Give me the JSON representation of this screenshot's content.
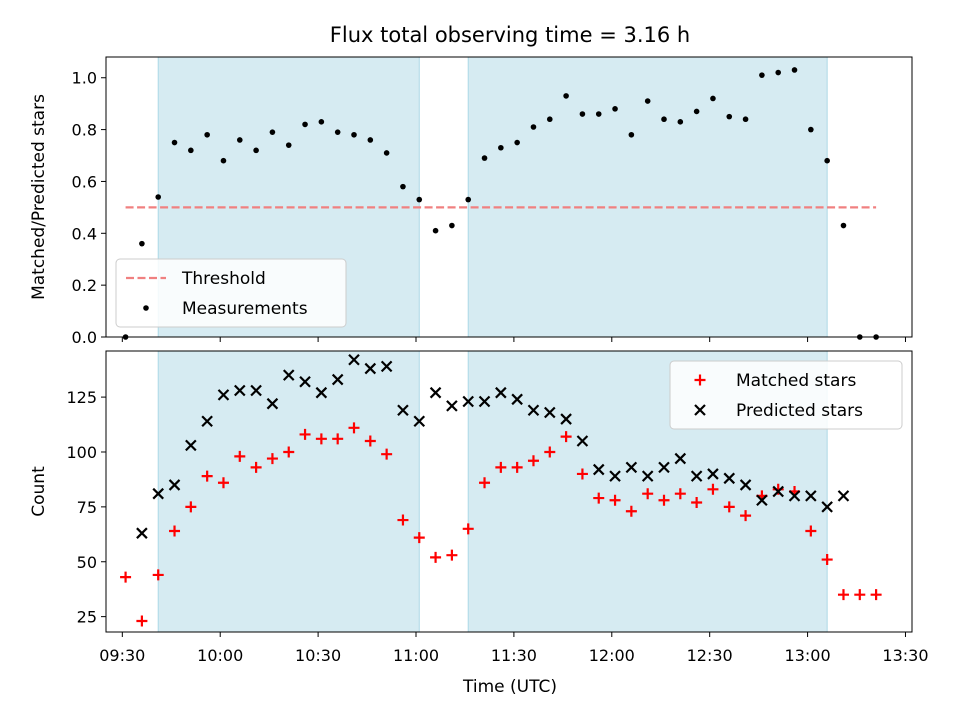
{
  "figure": {
    "title": "Flux total observing time = 3.16 h",
    "xlabel": "Time (UTC)"
  },
  "chart_data": [
    {
      "type": "scatter",
      "panel": "top",
      "ylabel": "Matched/Predicted stars",
      "xlim": [
        "09:25",
        "13:32"
      ],
      "ylim": [
        0,
        1.08
      ],
      "yticks": [
        0.0,
        0.2,
        0.4,
        0.6,
        0.8,
        1.0
      ],
      "shaded_intervals": [
        [
          "09:41",
          "11:01"
        ],
        [
          "11:16",
          "13:06"
        ]
      ],
      "threshold": {
        "label": "Threshold",
        "value": 0.5,
        "x_start": "09:31",
        "x_end": "13:21",
        "color": "#f08080"
      },
      "legend": {
        "position": "lower-left",
        "entries": [
          "Threshold",
          "Measurements"
        ]
      },
      "series": [
        {
          "name": "Measurements",
          "marker": "dot",
          "color": "#000000",
          "x": [
            "09:31",
            "09:36",
            "09:41",
            "09:46",
            "09:51",
            "09:56",
            "10:01",
            "10:06",
            "10:11",
            "10:16",
            "10:21",
            "10:26",
            "10:31",
            "10:36",
            "10:41",
            "10:46",
            "10:51",
            "10:56",
            "11:01",
            "11:06",
            "11:11",
            "11:16",
            "11:21",
            "11:26",
            "11:31",
            "11:36",
            "11:41",
            "11:46",
            "11:51",
            "11:56",
            "12:01",
            "12:06",
            "12:11",
            "12:16",
            "12:21",
            "12:26",
            "12:31",
            "12:36",
            "12:41",
            "12:46",
            "12:51",
            "12:56",
            "13:01",
            "13:06",
            "13:11",
            "13:16",
            "13:21"
          ],
          "y": [
            0.0,
            0.36,
            0.54,
            0.75,
            0.72,
            0.78,
            0.68,
            0.76,
            0.72,
            0.79,
            0.74,
            0.82,
            0.83,
            0.79,
            0.78,
            0.76,
            0.71,
            0.58,
            0.53,
            0.41,
            0.43,
            0.53,
            0.69,
            0.73,
            0.75,
            0.81,
            0.84,
            0.93,
            0.86,
            0.86,
            0.88,
            0.78,
            0.91,
            0.84,
            0.83,
            0.87,
            0.92,
            0.85,
            0.84,
            1.01,
            1.02,
            1.03,
            0.8,
            0.68,
            0.43,
            0.0,
            0.0
          ]
        }
      ]
    },
    {
      "type": "scatter",
      "panel": "bottom",
      "ylabel": "Count",
      "xlim": [
        "09:25",
        "13:32"
      ],
      "ylim": [
        18,
        146
      ],
      "yticks": [
        25,
        50,
        75,
        100,
        125
      ],
      "xticks": [
        "09:30",
        "10:00",
        "10:30",
        "11:00",
        "11:30",
        "12:00",
        "12:30",
        "13:00",
        "13:30"
      ],
      "shaded_intervals": [
        [
          "09:41",
          "11:01"
        ],
        [
          "11:16",
          "13:06"
        ]
      ],
      "legend": {
        "position": "top-right",
        "entries": [
          "Matched stars",
          "Predicted stars"
        ]
      },
      "series": [
        {
          "name": "Matched stars",
          "marker": "plus",
          "color": "#ff0000",
          "x": [
            "09:31",
            "09:36",
            "09:41",
            "09:46",
            "09:51",
            "09:56",
            "10:01",
            "10:06",
            "10:11",
            "10:16",
            "10:21",
            "10:26",
            "10:31",
            "10:36",
            "10:41",
            "10:46",
            "10:51",
            "10:56",
            "11:01",
            "11:06",
            "11:11",
            "11:16",
            "11:21",
            "11:26",
            "11:31",
            "11:36",
            "11:41",
            "11:46",
            "11:51",
            "11:56",
            "12:01",
            "12:06",
            "12:11",
            "12:16",
            "12:21",
            "12:26",
            "12:31",
            "12:36",
            "12:41",
            "12:46",
            "12:51",
            "12:56",
            "13:01",
            "13:06",
            "13:11",
            "13:16",
            "13:21"
          ],
          "y": [
            43,
            23,
            44,
            64,
            75,
            89,
            86,
            98,
            93,
            97,
            100,
            108,
            106,
            106,
            111,
            105,
            99,
            69,
            61,
            52,
            53,
            65,
            86,
            93,
            93,
            96,
            100,
            107,
            90,
            79,
            78,
            73,
            81,
            78,
            81,
            77,
            83,
            75,
            71,
            80,
            83,
            82,
            64,
            51,
            35,
            35,
            35
          ]
        },
        {
          "name": "Predicted stars",
          "marker": "x",
          "color": "#000000",
          "x": [
            "09:36",
            "09:41",
            "09:46",
            "09:51",
            "09:56",
            "10:01",
            "10:06",
            "10:11",
            "10:16",
            "10:21",
            "10:26",
            "10:31",
            "10:36",
            "10:41",
            "10:46",
            "10:51",
            "10:56",
            "11:01",
            "11:06",
            "11:11",
            "11:16",
            "11:21",
            "11:26",
            "11:31",
            "11:36",
            "11:41",
            "11:46",
            "11:51",
            "11:56",
            "12:01",
            "12:06",
            "12:11",
            "12:16",
            "12:21",
            "12:26",
            "12:31",
            "12:36",
            "12:41",
            "12:46",
            "12:51",
            "12:56",
            "13:01",
            "13:06",
            "13:11"
          ],
          "y": [
            63,
            81,
            85,
            103,
            114,
            126,
            128,
            128,
            122,
            135,
            132,
            127,
            133,
            142,
            138,
            139,
            119,
            114,
            127,
            121,
            123,
            123,
            127,
            124,
            119,
            118,
            115,
            105,
            92,
            89,
            93,
            89,
            93,
            97,
            89,
            90,
            88,
            85,
            78,
            82,
            80,
            80,
            75,
            80
          ]
        }
      ]
    }
  ]
}
